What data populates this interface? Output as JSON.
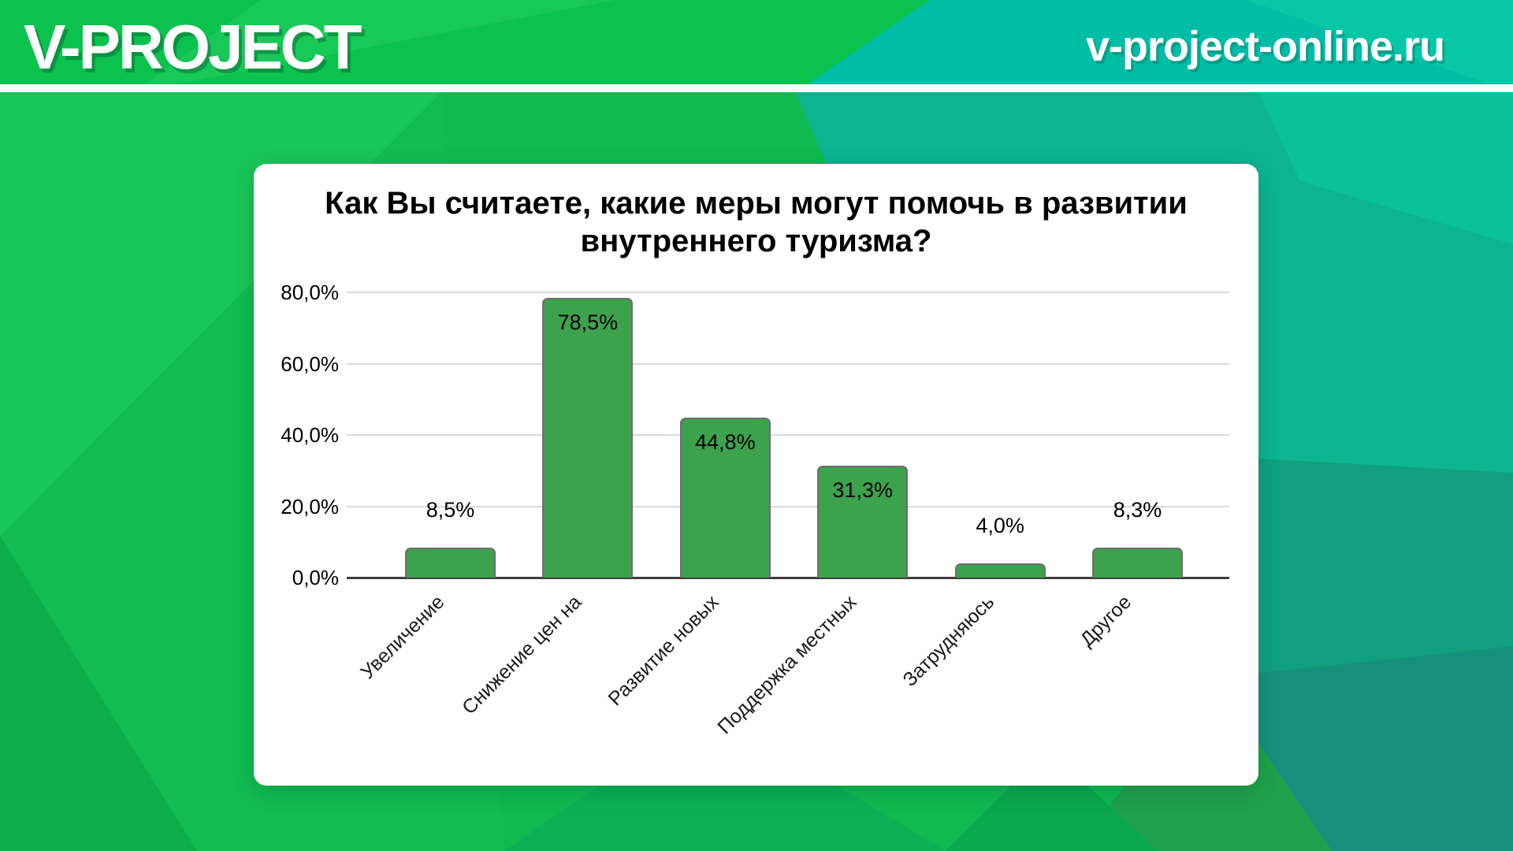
{
  "header": {
    "logo_text": "V-PROJECT",
    "site_url": "v-project-online.ru"
  },
  "colors": {
    "bar_fill": "#3CA24D",
    "bar_border": "#6E6E6E",
    "header_green": "#0BC24F",
    "header_teal": "#00BDA6",
    "background_green": "#10BA50",
    "background_teal": "#0CB492",
    "card_background": "#FFFFFF",
    "gridline": "#DADADA",
    "axis_line": "#3F3F3F",
    "text": "#000000"
  },
  "chart_data": {
    "type": "bar",
    "title": "Как Вы считаете, какие меры могут помочь в развитии внутреннего туризма?",
    "categories": [
      "Увеличение",
      "Снижение цен на",
      "Развитие новых",
      "Поддержка местных",
      "Затрудняюсь",
      "Другое"
    ],
    "values": [
      8.5,
      78.5,
      44.8,
      31.3,
      4.0,
      8.3
    ],
    "value_labels": [
      "8,5%",
      "78,5%",
      "44,8%",
      "31,3%",
      "4,0%",
      "8,3%"
    ],
    "yticks": [
      {
        "value": 80,
        "label": "80,0%"
      },
      {
        "value": 60,
        "label": "60,0%"
      },
      {
        "value": 40,
        "label": "40,0%"
      },
      {
        "value": 20,
        "label": "20,0%"
      },
      {
        "value": 0,
        "label": "0,0%"
      }
    ],
    "ylim": [
      0,
      80
    ],
    "xlabel": "",
    "ylabel": "",
    "grid": true,
    "legend_position": "none",
    "x_label_rotation_deg": 45
  }
}
